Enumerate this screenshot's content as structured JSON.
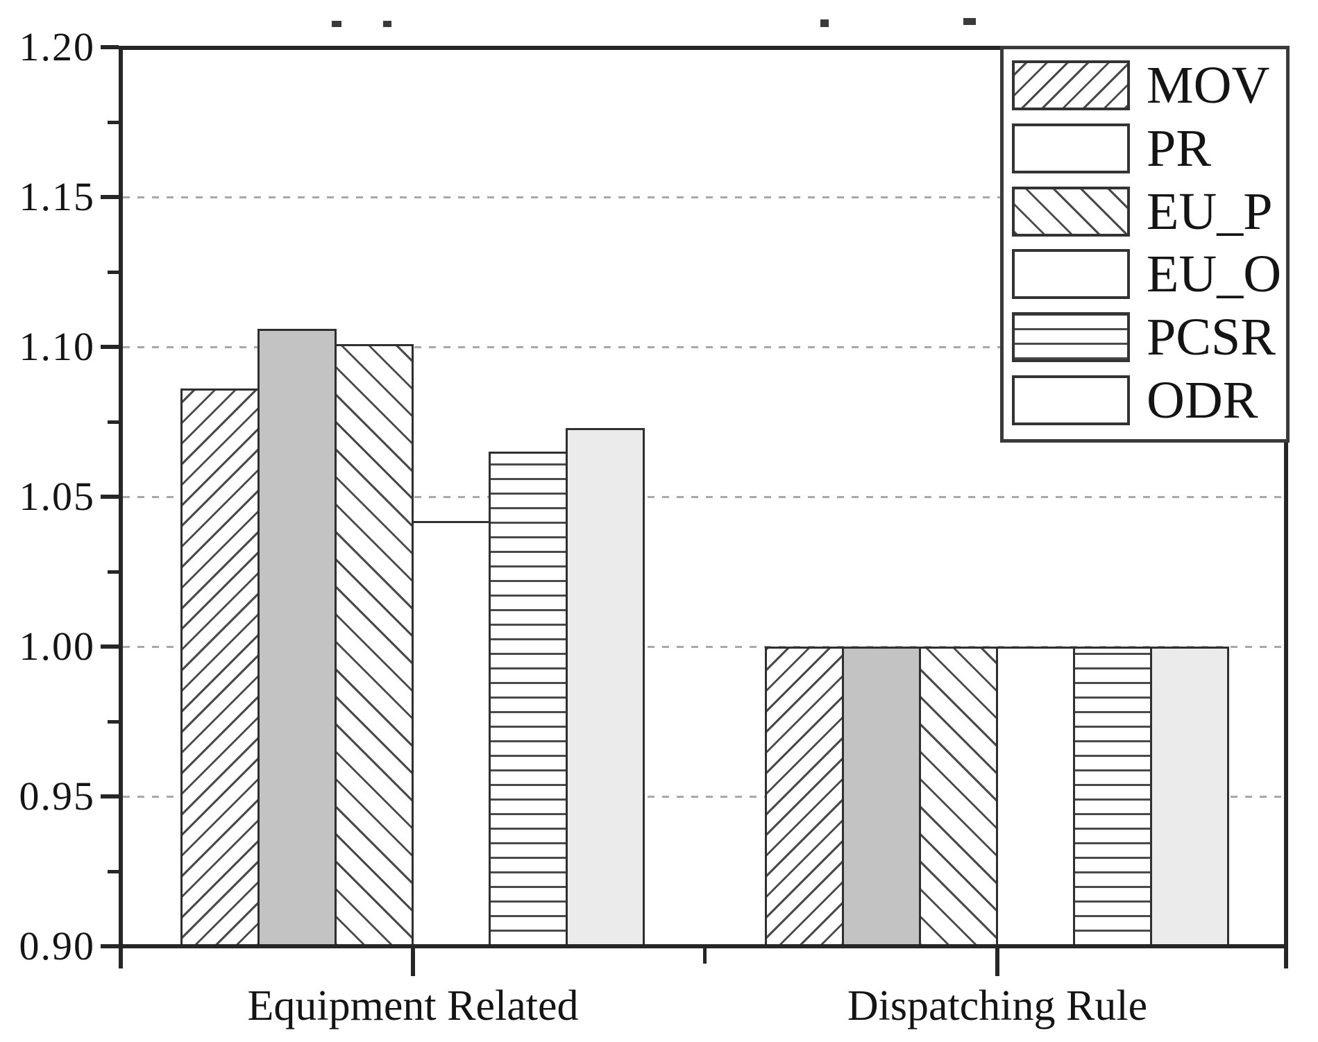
{
  "figure": {
    "y_axis": {
      "tick_labels": [
        "1.20",
        "1.15",
        "1.10",
        "1.05",
        "1.00",
        "0.95",
        "0.90"
      ]
    },
    "x_axis": {
      "category_labels": [
        "Equipment Related",
        "Dispatching Rule"
      ]
    },
    "legend": {
      "entries": [
        "MOV",
        "PR",
        "EU_P",
        "EU_O",
        "PCSR",
        "ODR"
      ]
    }
  },
  "chart_data": {
    "type": "bar",
    "categories": [
      "Equipment Related",
      "Dispatching Rule"
    ],
    "series": [
      {
        "name": "MOV",
        "pattern": "diag-forward",
        "values": [
          1.086,
          1.0
        ]
      },
      {
        "name": "PR",
        "pattern": "solid-gray",
        "values": [
          1.106,
          1.0
        ]
      },
      {
        "name": "EU_P",
        "pattern": "diag-backward",
        "values": [
          1.101,
          1.0
        ]
      },
      {
        "name": "EU_O",
        "pattern": "plain-white",
        "values": [
          1.042,
          1.0
        ]
      },
      {
        "name": "PCSR",
        "pattern": "horizontal-lines",
        "values": [
          1.065,
          1.0
        ]
      },
      {
        "name": "ODR",
        "pattern": "light-gray",
        "values": [
          1.073,
          1.0
        ]
      }
    ],
    "ylim": [
      0.9,
      1.2
    ],
    "ymajor_step": 0.05,
    "yminor_step": 0.025,
    "bar_baseline": 0.9,
    "grid": {
      "axis": "y",
      "style": "dashed",
      "levels": [
        0.95,
        1.0,
        1.05,
        1.1,
        1.15
      ]
    },
    "legend_position": "top-right",
    "colors": {
      "solid_gray_fill": "#c3c3c3",
      "light_gray_fill": "#ebebeb",
      "hatch_line": "#4a4a4a",
      "axis_line": "#262626",
      "gridline": "#a8a8a8",
      "text": "#141414"
    }
  }
}
